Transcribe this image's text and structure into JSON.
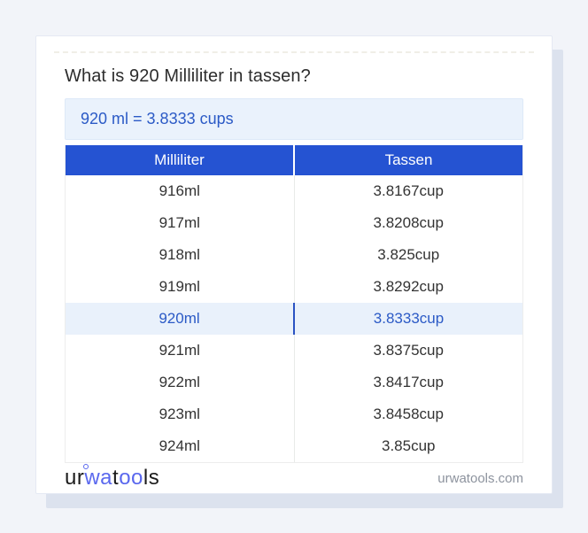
{
  "page": {
    "background_color": "#f2f4f9",
    "card_background": "#ffffff",
    "card_shadow_color": "#dce2ee"
  },
  "title": "What is 920 Milliliter in tassen?",
  "result": {
    "text": "920 ml = 3.8333 cups",
    "background": "#eaf2fc",
    "text_color": "#2b5ac6"
  },
  "table": {
    "header": {
      "col1": "Milliliter",
      "col2": "Tassen",
      "background": "#2553d2",
      "text_color": "#ffffff"
    },
    "highlight": {
      "background": "#e9f1fb",
      "text_color": "#2b5ac6"
    },
    "rows": [
      {
        "ml": "916ml",
        "cup": "3.8167cup",
        "highlighted": false
      },
      {
        "ml": "917ml",
        "cup": "3.8208cup",
        "highlighted": false
      },
      {
        "ml": "918ml",
        "cup": "3.825cup",
        "highlighted": false
      },
      {
        "ml": "919ml",
        "cup": "3.8292cup",
        "highlighted": false
      },
      {
        "ml": "920ml",
        "cup": "3.8333cup",
        "highlighted": true
      },
      {
        "ml": "921ml",
        "cup": "3.8375cup",
        "highlighted": false
      },
      {
        "ml": "922ml",
        "cup": "3.8417cup",
        "highlighted": false
      },
      {
        "ml": "923ml",
        "cup": "3.8458cup",
        "highlighted": false
      },
      {
        "ml": "924ml",
        "cup": "3.85cup",
        "highlighted": false
      }
    ]
  },
  "footer": {
    "logo": {
      "p1": "ur",
      "p2": "wa",
      "p3": "t",
      "p4": "oo",
      "p5": "ls",
      "accent_color": "#5a68ee"
    },
    "domain": "urwatools.com"
  }
}
